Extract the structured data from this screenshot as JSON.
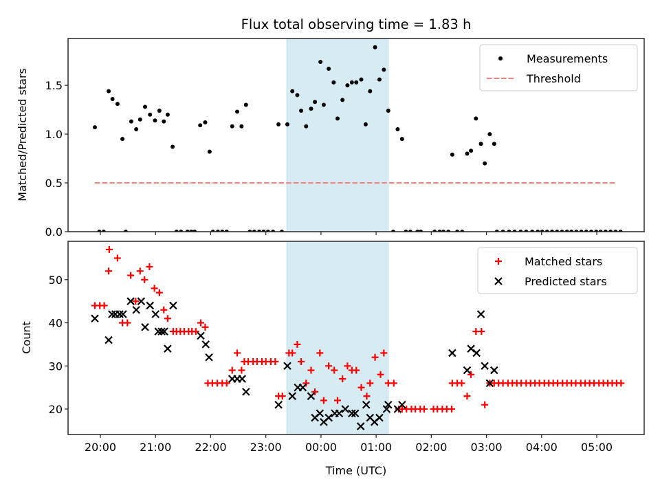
{
  "chart_data": [
    {
      "type": "scatter",
      "panel": "top",
      "title": "Flux total observing time = 1.83 h",
      "xlabel": "",
      "ylabel": "Matched/Predicted stars",
      "x_units": "hours after 20:00 UTC",
      "xlim": [
        -0.586,
        9.86
      ],
      "ylim": [
        0.0,
        1.98
      ],
      "yticks": [
        0.0,
        0.5,
        1.0,
        1.5
      ],
      "ytick_labels": [
        "0.0",
        "0.5",
        "1.0",
        "1.5"
      ],
      "grid": false,
      "legend": {
        "placement": "top-right",
        "entries": [
          "Measurements",
          "Threshold"
        ]
      },
      "shaded_region": {
        "x": [
          3.38,
          5.22
        ],
        "color": "#add8e6",
        "alpha": 0.5
      },
      "series": [
        {
          "name": "Measurements",
          "kind": "scatter",
          "marker": "dot",
          "color": "#000000",
          "x": [
            -0.1,
            0.15,
            0.22,
            0.31,
            0.4,
            0.56,
            0.65,
            0.72,
            0.81,
            0.9,
            0.99,
            1.07,
            1.15,
            1.22,
            1.31,
            1.81,
            1.9,
            1.98,
            2.39,
            2.48,
            2.56,
            2.64,
            3.23,
            3.39,
            3.48,
            3.57,
            3.64,
            3.73,
            3.82,
            3.89,
            3.99,
            4.05,
            4.14,
            4.23,
            4.3,
            4.39,
            4.48,
            4.56,
            4.64,
            4.73,
            4.81,
            4.89,
            4.98,
            5.06,
            5.14,
            5.22,
            5.39,
            5.47,
            6.38,
            6.65,
            6.72,
            6.81,
            6.9,
            6.97,
            7.06,
            7.14,
            -0.02,
            0.06,
            0.46,
            1.38,
            1.46,
            1.58,
            1.65,
            1.71,
            2.04,
            2.13,
            2.21,
            2.29,
            2.71,
            2.79,
            2.88,
            2.96,
            3.04,
            3.13,
            3.29,
            5.31,
            5.54,
            5.62,
            5.75,
            5.81,
            6.06,
            6.15,
            6.22,
            6.31,
            6.47,
            6.56,
            7.19,
            7.3,
            7.41,
            7.51,
            7.62,
            7.72,
            7.83,
            7.93,
            8.01,
            8.1,
            8.19,
            8.28,
            8.37,
            8.46,
            8.54,
            8.63,
            8.72,
            8.81,
            8.9,
            8.99,
            9.07,
            9.16,
            9.25,
            9.34,
            9.43
          ],
          "y": [
            1.07,
            1.44,
            1.36,
            1.31,
            0.95,
            1.13,
            1.05,
            1.15,
            1.28,
            1.2,
            1.14,
            1.24,
            1.13,
            1.2,
            0.87,
            1.09,
            1.12,
            0.82,
            1.08,
            1.23,
            1.08,
            1.3,
            1.1,
            1.1,
            1.44,
            1.4,
            1.24,
            1.08,
            1.26,
            1.33,
            1.74,
            1.3,
            1.67,
            1.53,
            1.16,
            1.35,
            1.5,
            1.53,
            1.53,
            1.56,
            1.1,
            1.44,
            1.89,
            1.56,
            1.66,
            1.24,
            1.05,
            0.95,
            0.79,
            0.8,
            0.83,
            1.16,
            0.9,
            0.7,
            1.0,
            0.9,
            0,
            0,
            0,
            0,
            0,
            0,
            0,
            0,
            0,
            0,
            0,
            0,
            0,
            0,
            0,
            0,
            0,
            0,
            0,
            0,
            0,
            0,
            0,
            0,
            0,
            0,
            0,
            0,
            0,
            0,
            0,
            0,
            0,
            0,
            0,
            0,
            0,
            0,
            0,
            0,
            0,
            0,
            0,
            0,
            0,
            0,
            0,
            0,
            0,
            0,
            0,
            0,
            0,
            0,
            0
          ]
        },
        {
          "name": "Threshold",
          "kind": "line",
          "linestyle": "dashed",
          "color": "#ff7f7f",
          "x": [
            -0.1,
            9.34
          ],
          "y": [
            0.5,
            0.5
          ]
        }
      ]
    },
    {
      "type": "scatter",
      "panel": "bottom",
      "title": "",
      "xlabel": "Time (UTC)",
      "ylabel": "Count",
      "x_units": "hours after 20:00 UTC",
      "xlim": [
        -0.586,
        9.86
      ],
      "ylim": [
        14.1,
        58.9
      ],
      "xticks": [
        0,
        1,
        2,
        3,
        4,
        5,
        6,
        7,
        8,
        9
      ],
      "xtick_labels": [
        "20:00",
        "21:00",
        "22:00",
        "23:00",
        "00:00",
        "01:00",
        "02:00",
        "03:00",
        "04:00",
        "05:00"
      ],
      "yticks": [
        20,
        30,
        40,
        50
      ],
      "ytick_labels": [
        "20",
        "30",
        "40",
        "50"
      ],
      "grid": false,
      "legend": {
        "placement": "top-right",
        "entries": [
          "Matched stars",
          "Predicted stars"
        ]
      },
      "shaded_region": {
        "x": [
          3.38,
          5.22
        ],
        "color": "#add8e6",
        "alpha": 0.5
      },
      "series": [
        {
          "name": "Matched stars",
          "kind": "scatter",
          "marker": "plus",
          "color": "#ff0000",
          "x": [
            -0.1,
            -0.01,
            0.07,
            0.16,
            0.31,
            0.15,
            0.4,
            0.49,
            0.55,
            0.64,
            0.72,
            0.8,
            0.89,
            0.98,
            1.07,
            1.15,
            1.22,
            1.32,
            1.38,
            1.45,
            1.52,
            1.6,
            1.66,
            1.73,
            1.82,
            1.9,
            1.95,
            2.03,
            2.12,
            2.21,
            2.29,
            2.39,
            2.56,
            2.48,
            2.61,
            2.68,
            2.77,
            2.84,
            2.93,
            3.0,
            3.09,
            3.17,
            3.23,
            3.3,
            3.42,
            3.48,
            3.57,
            3.64,
            3.73,
            3.82,
            3.89,
            3.98,
            4.05,
            4.14,
            4.24,
            4.3,
            4.39,
            4.48,
            4.56,
            4.64,
            4.73,
            4.83,
            4.89,
            4.98,
            5.08,
            5.14,
            5.22,
            5.32,
            5.41,
            5.47,
            5.55,
            5.64,
            5.71,
            5.8,
            5.87,
            6.04,
            6.11,
            6.2,
            6.28,
            6.37,
            6.38,
            6.47,
            6.55,
            6.65,
            6.72,
            6.81,
            6.91,
            6.97,
            7.06,
            7.14,
            7.22,
            7.3,
            7.39,
            7.47,
            7.55,
            7.63,
            7.72,
            7.8,
            7.88,
            7.96,
            8.05,
            8.13,
            8.21,
            8.29,
            8.38,
            8.46,
            8.54,
            8.62,
            8.71,
            8.79,
            8.87,
            8.95,
            9.04,
            9.12,
            9.2,
            9.28,
            9.36,
            9.44
          ],
          "y": [
            44,
            44,
            44,
            57,
            55,
            52,
            40,
            40,
            51,
            45,
            52,
            50,
            53,
            48,
            47,
            43,
            41,
            38,
            38,
            38,
            38,
            38,
            38,
            38,
            40,
            39,
            26,
            26,
            26,
            26,
            26,
            29,
            29,
            33,
            31,
            31,
            31,
            31,
            31,
            31,
            31,
            31,
            23,
            23,
            33,
            33,
            35,
            31,
            26,
            29,
            24,
            33,
            22,
            30,
            29,
            22,
            27,
            30,
            29,
            29,
            25,
            23,
            26,
            32,
            28,
            33,
            26,
            26,
            20,
            20,
            20,
            20,
            20,
            20,
            20,
            20,
            20,
            20,
            20,
            20,
            26,
            26,
            26,
            23,
            28,
            38,
            38,
            21,
            26,
            26,
            26,
            26,
            26,
            26,
            26,
            26,
            26,
            26,
            26,
            26,
            26,
            26,
            26,
            26,
            26,
            26,
            26,
            26,
            26,
            26,
            26,
            26,
            26,
            26,
            26,
            26,
            26,
            26
          ]
        },
        {
          "name": "Predicted stars",
          "kind": "scatter",
          "marker": "x",
          "color": "#000000",
          "x": [
            -0.1,
            0.15,
            0.21,
            0.27,
            0.35,
            0.41,
            0.55,
            0.65,
            0.74,
            0.81,
            0.9,
            1.0,
            1.05,
            1.11,
            1.16,
            1.22,
            1.32,
            1.82,
            1.91,
            1.97,
            2.39,
            2.48,
            2.57,
            2.64,
            3.23,
            3.39,
            3.48,
            3.58,
            3.67,
            3.82,
            3.89,
            3.98,
            4.05,
            4.14,
            4.25,
            4.33,
            4.44,
            4.56,
            4.62,
            4.72,
            4.82,
            4.89,
            4.97,
            5.06,
            5.19,
            5.22,
            5.39,
            5.47,
            6.38,
            6.65,
            6.72,
            6.82,
            6.9,
            6.97,
            7.06,
            7.14
          ],
          "y": [
            41,
            36,
            42,
            42,
            42,
            42,
            45,
            43,
            45,
            39,
            44,
            42,
            38,
            38,
            38,
            34,
            44,
            37,
            35,
            32,
            27,
            27,
            27,
            24,
            21,
            30,
            23,
            25,
            25,
            23,
            18,
            19,
            17,
            18,
            19,
            19,
            20,
            19,
            19,
            16,
            21,
            18,
            17,
            18,
            20,
            21,
            20,
            21,
            33,
            29,
            34,
            33,
            42,
            30,
            26,
            29
          ]
        }
      ]
    }
  ]
}
